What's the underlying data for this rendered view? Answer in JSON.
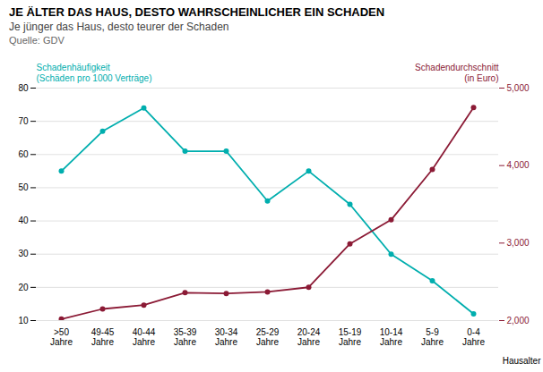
{
  "chart_data": {
    "type": "line",
    "title": "JE ÄLTER DAS HAUS, DESTO WAHRSCHEINLICHER EIN SCHADEN",
    "subtitle": "Je jünger das Haus, desto teurer der Schaden",
    "source": "Quelle: GDV",
    "xlabel": "Hausalter",
    "categories": [
      ">50\nJahre",
      "49-45\nJahre",
      "40-44\nJahre",
      "35-39\nJahre",
      "30-34\nJahre",
      "25-29\nJahre",
      "20-24\nJahre",
      "15-19\nJahre",
      "10-14\nJahre",
      "5-9\nJahre",
      "0-4\nJahre"
    ],
    "series": [
      {
        "name": "Schadenhäufigkeit\n(Schäden pro 1000 Verträge)",
        "color": "#00AEAE",
        "axis": "y",
        "values": [
          55,
          67,
          74,
          61,
          61,
          46,
          55,
          45,
          30,
          22,
          12
        ]
      },
      {
        "name": "Schadendurchschnitt\n(in Euro)",
        "color": "#8B1A35",
        "axis": "y2",
        "values": [
          2020,
          2150,
          2200,
          2360,
          2350,
          2370,
          2430,
          2990,
          3300,
          3950,
          4750
        ]
      }
    ],
    "ylim": [
      10,
      80
    ],
    "yticks": [
      10,
      20,
      30,
      40,
      50,
      60,
      70,
      80
    ],
    "y2lim": [
      2000,
      5000
    ],
    "y2ticks": [
      2000,
      3000,
      4000,
      5000
    ],
    "grid": true,
    "marker": "circle"
  }
}
